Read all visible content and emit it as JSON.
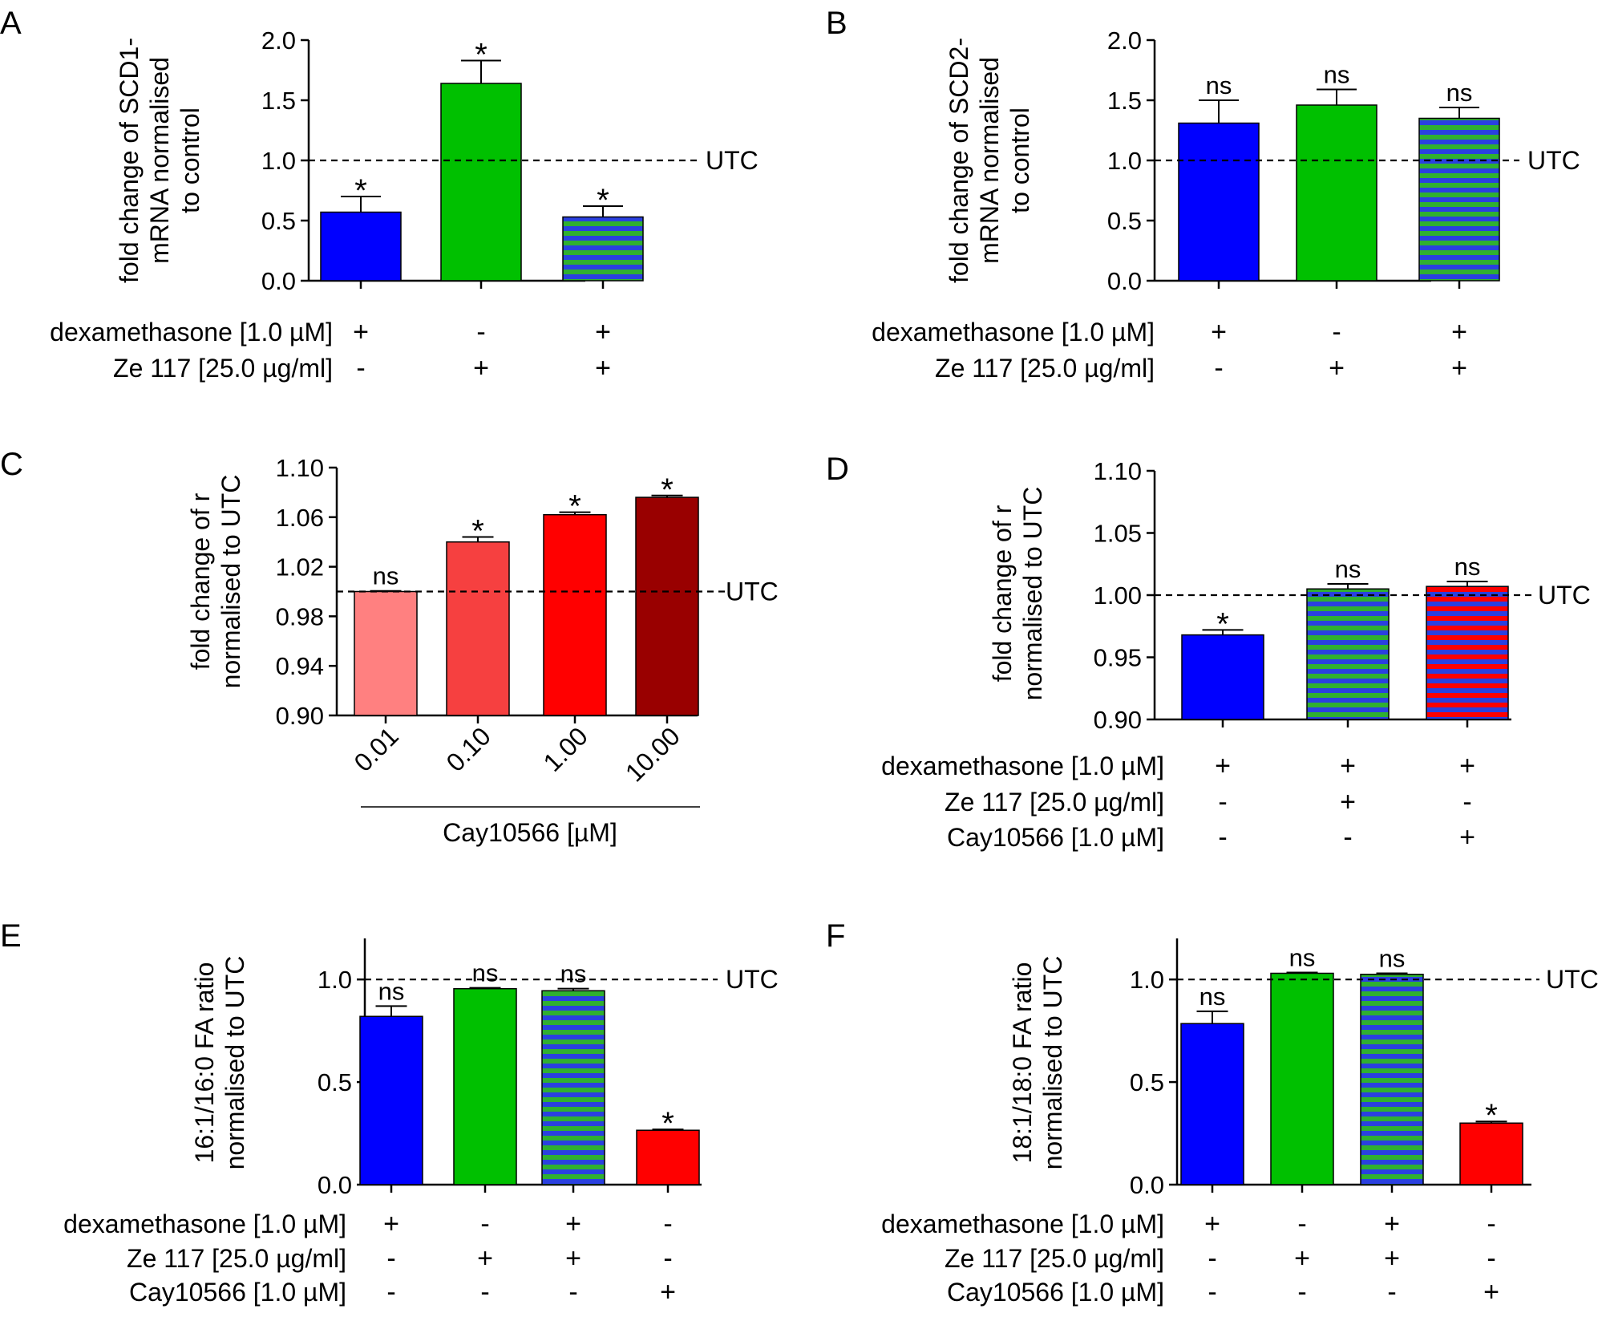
{
  "figure": {
    "reference_label": "UTC",
    "colors": {
      "blue": "#0000ff",
      "green": "#00c000",
      "red": "#ff0000",
      "stripe_green": "#30b030",
      "stripe_blue": "#2a40e0",
      "c_001": "#ff8080",
      "c_010": "#f64040",
      "c_100": "#ff0000",
      "c_1000": "#990000"
    }
  },
  "chart_data": [
    {
      "panel": "A",
      "type": "bar",
      "ylabel": [
        "fold change of SCD1-",
        "mRNA  normalised",
        "to control"
      ],
      "ylim": [
        0,
        2.0
      ],
      "yticks": [
        0.0,
        0.5,
        1.0,
        1.5,
        2.0
      ],
      "ytick_labels": [
        "0.0",
        "0.5",
        "1.0",
        "1.5",
        "2.0"
      ],
      "reference_line": 1.0,
      "bars": [
        {
          "value": 0.57,
          "error": 0.13,
          "sig": "*",
          "fill": "blue"
        },
        {
          "value": 1.64,
          "error": 0.19,
          "sig": "*",
          "fill": "green"
        },
        {
          "value": 0.53,
          "error": 0.09,
          "sig": "*",
          "fill": "stripe-gb"
        }
      ],
      "conditions": [
        {
          "label": "dexamethasone [1.0 µM]",
          "signs": [
            "+",
            "-",
            "+"
          ]
        },
        {
          "label": "Ze 117 [25.0 µg/ml]",
          "signs": [
            "-",
            "+",
            "+"
          ]
        }
      ]
    },
    {
      "panel": "B",
      "type": "bar",
      "ylabel": [
        "fold change of SCD2-",
        "mRNA normalised",
        "to control"
      ],
      "ylim": [
        0,
        2.0
      ],
      "yticks": [
        0.0,
        0.5,
        1.0,
        1.5,
        2.0
      ],
      "ytick_labels": [
        "0.0",
        "0.5",
        "1.0",
        "1.5",
        "2.0"
      ],
      "reference_line": 1.0,
      "bars": [
        {
          "value": 1.31,
          "error": 0.19,
          "sig": "ns",
          "fill": "blue"
        },
        {
          "value": 1.46,
          "error": 0.13,
          "sig": "ns",
          "fill": "green"
        },
        {
          "value": 1.35,
          "error": 0.09,
          "sig": "ns",
          "fill": "stripe-gb"
        }
      ],
      "conditions": [
        {
          "label": "dexamethasone [1.0 µM]",
          "signs": [
            "+",
            "-",
            "+"
          ]
        },
        {
          "label": "Ze 117 [25.0 µg/ml]",
          "signs": [
            "-",
            "+",
            "+"
          ]
        }
      ]
    },
    {
      "panel": "C",
      "type": "bar",
      "ylabel": [
        "fold change of r",
        "normalised to UTC"
      ],
      "ylim": [
        0.9,
        1.1
      ],
      "yticks": [
        0.9,
        0.94,
        0.98,
        1.02,
        1.06,
        1.1
      ],
      "ytick_labels": [
        "0.90",
        "0.94",
        "0.98",
        "1.02",
        "1.06",
        "1.10"
      ],
      "reference_line": 1.0,
      "categories": [
        "0.01",
        "0.10",
        "1.00",
        "10.00"
      ],
      "xlabel": "Cay10566 [µM]",
      "bars": [
        {
          "value": 1.0,
          "error": 0.0005,
          "sig": "ns",
          "fill": "c_001"
        },
        {
          "value": 1.04,
          "error": 0.004,
          "sig": "*",
          "fill": "c_010"
        },
        {
          "value": 1.062,
          "error": 0.002,
          "sig": "*",
          "fill": "c_100"
        },
        {
          "value": 1.076,
          "error": 0.0015,
          "sig": "*",
          "fill": "c_1000"
        }
      ],
      "conditions": []
    },
    {
      "panel": "D",
      "type": "bar",
      "ylabel": [
        "fold change of r",
        "normalised to UTC"
      ],
      "ylim": [
        0.9,
        1.1
      ],
      "yticks": [
        0.9,
        0.95,
        1.0,
        1.05,
        1.1
      ],
      "ytick_labels": [
        "0.90",
        "0.95",
        "1.00",
        "1.05",
        "1.10"
      ],
      "reference_line": 1.0,
      "bars": [
        {
          "value": 0.968,
          "error": 0.004,
          "sig": "*",
          "fill": "blue"
        },
        {
          "value": 1.005,
          "error": 0.004,
          "sig": "ns",
          "fill": "stripe-gb"
        },
        {
          "value": 1.007,
          "error": 0.004,
          "sig": "ns",
          "fill": "stripe-rb"
        }
      ],
      "conditions": [
        {
          "label": "dexamethasone [1.0 µM]",
          "signs": [
            "+",
            "+",
            "+"
          ]
        },
        {
          "label": "Ze 117 [25.0 µg/ml]",
          "signs": [
            "-",
            "+",
            "-"
          ]
        },
        {
          "label": "Cay10566 [1.0 µM]",
          "signs": [
            "-",
            "-",
            "+"
          ]
        }
      ]
    },
    {
      "panel": "E",
      "type": "bar",
      "ylabel": [
        "16:1/16:0 FA ratio",
        "normalised to UTC"
      ],
      "ylim": [
        0,
        1.2
      ],
      "yticks": [
        0.0,
        0.5,
        1.0
      ],
      "ytick_labels": [
        "0.0",
        "0.5",
        "1.0"
      ],
      "reference_line": 1.0,
      "bars": [
        {
          "value": 0.82,
          "error": 0.05,
          "sig": "ns",
          "fill": "blue"
        },
        {
          "value": 0.955,
          "error": 0.004,
          "sig": "ns",
          "fill": "green"
        },
        {
          "value": 0.945,
          "error": 0.01,
          "sig": "ns",
          "fill": "stripe-gb"
        },
        {
          "value": 0.265,
          "error": 0.004,
          "sig": "*",
          "fill": "red"
        }
      ],
      "conditions": [
        {
          "label": "dexamethasone [1.0 µM]",
          "signs": [
            "+",
            "-",
            "+",
            "-"
          ]
        },
        {
          "label": "Ze 117 [25.0 µg/ml]",
          "signs": [
            "-",
            "+",
            "+",
            "-"
          ]
        },
        {
          "label": "Cay10566 [1.0 µM]",
          "signs": [
            "-",
            "-",
            "-",
            "+"
          ]
        }
      ]
    },
    {
      "panel": "F",
      "type": "bar",
      "ylabel": [
        "18:1/18:0 FA ratio",
        "normalised to UTC"
      ],
      "ylim": [
        0,
        1.2
      ],
      "yticks": [
        0.0,
        0.5,
        1.0
      ],
      "ytick_labels": [
        "0.0",
        "0.5",
        "1.0"
      ],
      "reference_line": 1.0,
      "bars": [
        {
          "value": 0.785,
          "error": 0.06,
          "sig": "ns",
          "fill": "blue"
        },
        {
          "value": 1.03,
          "error": 0.004,
          "sig": "ns",
          "fill": "green"
        },
        {
          "value": 1.025,
          "error": 0.005,
          "sig": "ns",
          "fill": "stripe-gb"
        },
        {
          "value": 0.3,
          "error": 0.008,
          "sig": "*",
          "fill": "red"
        }
      ],
      "conditions": [
        {
          "label": "dexamethasone [1.0 µM]",
          "signs": [
            "+",
            "-",
            "+",
            "-"
          ]
        },
        {
          "label": "Ze 117 [25.0 µg/ml]",
          "signs": [
            "-",
            "+",
            "+",
            "-"
          ]
        },
        {
          "label": "Cay10566 [1.0 µM]",
          "signs": [
            "-",
            "-",
            "-",
            "+"
          ]
        }
      ]
    }
  ]
}
